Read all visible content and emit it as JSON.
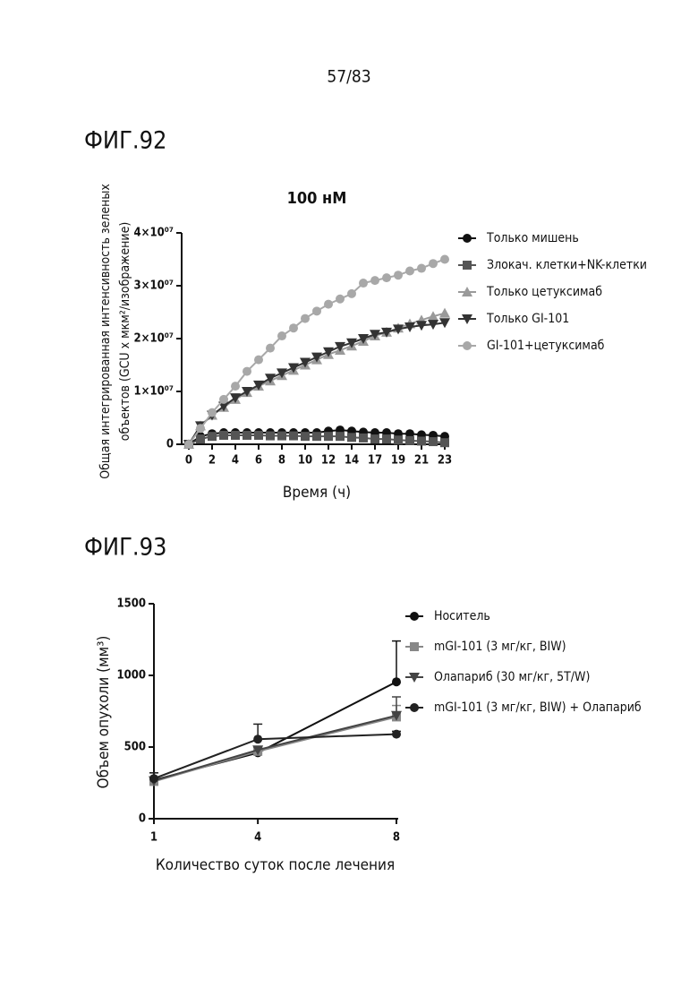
{
  "page_number": "57/83",
  "figure_labels": [
    "ФИГ.92",
    "ФИГ.93"
  ],
  "chart_data": [
    {
      "type": "line",
      "title": "100 нМ",
      "xlabel": "Время (ч)",
      "ylabel": [
        "Общая интегрированная интенсивность зеленых",
        "объектов (GCU x мкм²/изображение)"
      ],
      "categories": [
        0,
        null,
        2,
        null,
        4,
        null,
        6,
        null,
        8,
        null,
        10,
        null,
        12,
        null,
        14,
        null,
        17,
        null,
        19,
        null,
        21,
        null,
        23
      ],
      "ylim": [
        0,
        40000000
      ],
      "yticks": [
        0,
        {
          "value": 10000000,
          "label": "1×10⁰⁷"
        },
        {
          "value": 20000000,
          "label": "2×10⁰⁷"
        },
        {
          "value": 30000000,
          "label": "3×10⁰⁷"
        },
        {
          "value": 40000000,
          "label": "4×10⁰⁷"
        }
      ],
      "series": [
        {
          "name": "Только мишень",
          "color": "#111111",
          "marker": "circle",
          "values": [
            0,
            1500000,
            2000000,
            2200000,
            2200000,
            2200000,
            2200000,
            2200000,
            2200000,
            2200000,
            2200000,
            2200000,
            2500000,
            2700000,
            2500000,
            2300000,
            2200000,
            2200000,
            2000000,
            2000000,
            1800000,
            1700000,
            1500000
          ]
        },
        {
          "name": "Злокач. клетки+NK-клетки",
          "color": "#555555",
          "marker": "square",
          "values": [
            0,
            1000000,
            1500000,
            1700000,
            1700000,
            1700000,
            1700000,
            1600000,
            1600000,
            1600000,
            1500000,
            1500000,
            1500000,
            1500000,
            1300000,
            1200000,
            1000000,
            1000000,
            800000,
            700000,
            600000,
            500000,
            300000
          ]
        },
        {
          "name": "Только цетуксимаб",
          "color": "#9a9a9a",
          "marker": "triangle",
          "values": [
            0,
            3500000,
            5500000,
            7000000,
            8500000,
            9800000,
            11000000,
            12000000,
            13000000,
            14000000,
            15000000,
            16000000,
            17000000,
            17800000,
            18600000,
            19500000,
            20500000,
            21200000,
            22000000,
            22800000,
            23500000,
            24200000,
            24800000
          ]
        },
        {
          "name": "Только GI-101",
          "color": "#333333",
          "marker": "triangle-down",
          "values": [
            0,
            3500000,
            5500000,
            7200000,
            8800000,
            10000000,
            11200000,
            12500000,
            13500000,
            14500000,
            15500000,
            16500000,
            17500000,
            18500000,
            19200000,
            20000000,
            20800000,
            21200000,
            21800000,
            22200000,
            22500000,
            22700000,
            23000000
          ]
        },
        {
          "name": "GI-101+цетуксимаб",
          "color": "#a8a8a8",
          "marker": "circle",
          "values": [
            0,
            3000000,
            6000000,
            8500000,
            11000000,
            13800000,
            16000000,
            18200000,
            20500000,
            22000000,
            23800000,
            25200000,
            26500000,
            27500000,
            28500000,
            30500000,
            31000000,
            31500000,
            32000000,
            32800000,
            33300000,
            34200000,
            35000000
          ]
        }
      ]
    },
    {
      "type": "line",
      "xlabel": "Количество суток после лечения",
      "ylabel": [
        "Объем опухоли (мм³)"
      ],
      "x": [
        1,
        4,
        8
      ],
      "xlim": [
        1,
        8
      ],
      "xticks": [
        1,
        4,
        8
      ],
      "ylim": [
        0,
        1500
      ],
      "yticks": [
        0,
        500,
        1000,
        1500
      ],
      "series": [
        {
          "name": "Носитель",
          "color": "#111111",
          "marker": "circle",
          "values": [
            270,
            460,
            955
          ],
          "errors": [
            50,
            15,
            285
          ]
        },
        {
          "name": "mGI-101 (3 мг/кг, BIW)",
          "color": "#888888",
          "marker": "square",
          "values": [
            260,
            470,
            710
          ],
          "errors": [
            20,
            30,
            80
          ]
        },
        {
          "name": "Олапариб (30 мг/кг, 5T/W)",
          "color": "#444444",
          "marker": "triangle-down",
          "values": [
            265,
            480,
            720
          ],
          "errors": [
            20,
            20,
            130
          ]
        },
        {
          "name": "mGI-101 (3 мг/кг, BIW) + Олапариб",
          "color": "#222222",
          "marker": "circle",
          "values": [
            280,
            555,
            590
          ],
          "errors": [
            40,
            105,
            20
          ]
        }
      ]
    }
  ]
}
